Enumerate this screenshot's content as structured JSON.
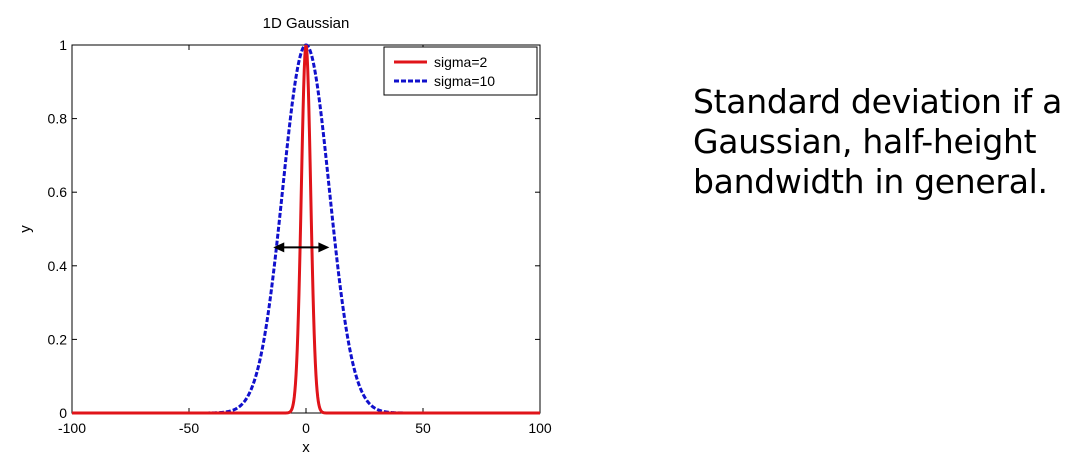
{
  "chart_data": {
    "type": "line",
    "title": "1D Gaussian",
    "xlabel": "x",
    "ylabel": "y",
    "xlim": [
      -100,
      100
    ],
    "ylim": [
      0,
      1
    ],
    "x_ticks": [
      "-100",
      "-50",
      "0",
      "50",
      "100"
    ],
    "y_ticks": [
      "0",
      "0.2",
      "0.4",
      "0.6",
      "0.8",
      "1"
    ],
    "legend_position": "top-right",
    "series": [
      {
        "name": "sigma=2",
        "sigma": 2,
        "color": "#e0141a",
        "style": "solid"
      },
      {
        "name": "sigma=10",
        "sigma": 10,
        "color": "#1010cc",
        "style": "dashed"
      }
    ],
    "annotation": {
      "type": "double-arrow",
      "x_from": -14,
      "x_to": 10,
      "y": 0.45
    }
  },
  "caption": "Standard deviation if a Gaussian, half-height bandwidth in general."
}
